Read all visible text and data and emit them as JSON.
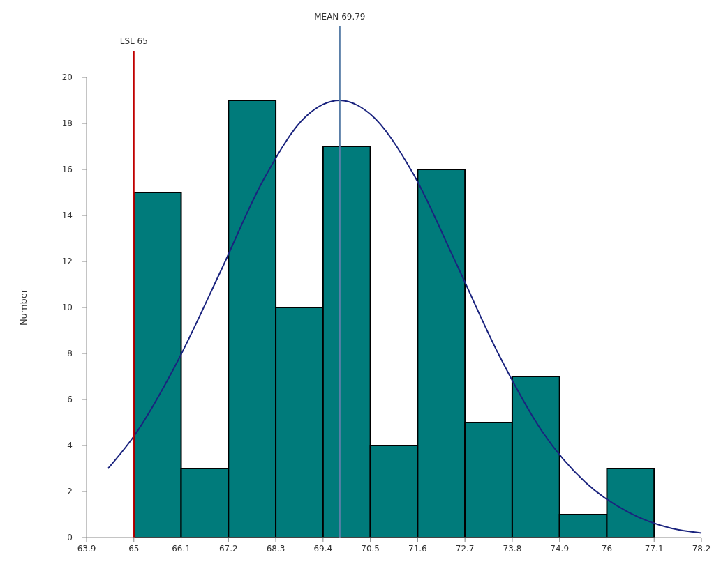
{
  "chart_data": {
    "type": "histogram",
    "ylabel": "Number",
    "bins": [
      65,
      66.1,
      67.2,
      68.3,
      69.4,
      70.5,
      71.6,
      72.7,
      73.8,
      74.9,
      76,
      77.1
    ],
    "values": [
      15,
      3,
      19,
      10,
      17,
      4,
      16,
      5,
      7,
      1,
      3
    ],
    "color": "#007b7b",
    "series": [
      {
        "type": "line",
        "color": "#1a237e",
        "x": [
          64.4,
          65,
          66,
          67,
          68,
          69,
          69.79,
          70.5,
          71.5,
          72.5,
          73.5,
          74.5,
          75.5,
          76.5,
          77.5,
          78.2
        ],
        "values": [
          3.0,
          4.4,
          7.6,
          11.5,
          15.5,
          18.3,
          19,
          18.4,
          15.8,
          11.9,
          7.9,
          4.6,
          2.4,
          1.1,
          0.4,
          0.2
        ]
      }
    ],
    "xlim": [
      63.9,
      78.2
    ],
    "xticks": [
      63.9,
      65,
      66.1,
      67.2,
      68.3,
      69.4,
      70.5,
      71.6,
      72.7,
      73.8,
      74.9,
      76,
      77.1,
      78.2
    ],
    "ylim": [
      0,
      20
    ],
    "yticks": [
      0,
      2,
      4,
      6,
      8,
      10,
      12,
      14,
      16,
      18,
      20
    ],
    "grid": false,
    "ref_lines": [
      {
        "axis": "x",
        "value": 65,
        "label": "LSL 65",
        "color": "#c00000"
      },
      {
        "axis": "x",
        "value": 69.79,
        "label": "MEAN 69.79",
        "color": "#5a7fa8"
      }
    ]
  }
}
